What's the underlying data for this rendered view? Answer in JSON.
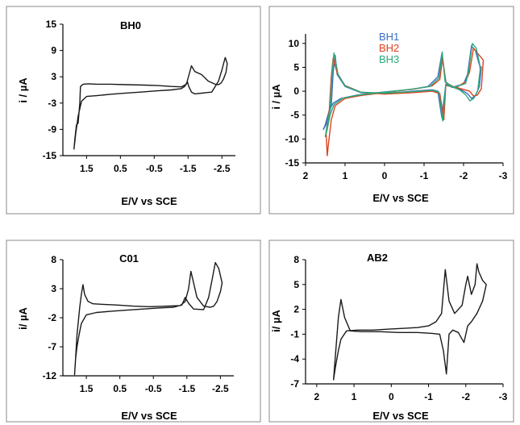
{
  "chart_data": [
    {
      "type": "line",
      "title": "BH0",
      "xlabel": "E/V vs SCE",
      "ylabel": "i / µA",
      "xlim": [
        2.2,
        -2.9
      ],
      "ylim": [
        -15,
        15
      ],
      "x_ticks": [
        "1.5",
        "0.5",
        "-0.5",
        "-1.5",
        "-2.5"
      ],
      "x_tick_values": [
        1.5,
        0.5,
        -0.5,
        -1.5,
        -2.5
      ],
      "y_ticks": [
        "15",
        "9",
        "3",
        "-3",
        "-9",
        "-15"
      ],
      "y_tick_values": [
        15,
        9,
        3,
        -3,
        -9,
        -15
      ],
      "legend": [],
      "series": [
        {
          "color": "#1a1a1a",
          "x": [
            1.87,
            1.82,
            1.75,
            1.65,
            1.5,
            1.2,
            0.8,
            0.3,
            -0.1,
            -0.6,
            -1.0,
            -1.3,
            -1.4,
            -1.48,
            -1.52,
            -1.6,
            -1.7,
            -2.2,
            -2.4,
            -2.5,
            -2.55,
            -2.6,
            -2.66,
            -2.62,
            -2.55,
            -2.48,
            -2.4,
            -2.3,
            -2.1,
            -1.9,
            -1.7,
            -1.6,
            -1.53,
            -1.45,
            -1.3,
            -1.0,
            -0.6,
            -0.2,
            0.3,
            0.8,
            1.2,
            1.45,
            1.6,
            1.68,
            1.7,
            1.75,
            1.8,
            1.85,
            1.87
          ],
          "y": [
            -13.5,
            -10.0,
            -6.0,
            -2.6,
            -1.5,
            -1.3,
            -1.0,
            -0.7,
            -0.5,
            -0.2,
            0.0,
            0.3,
            0.8,
            1.9,
            0.8,
            -0.5,
            -0.9,
            -0.5,
            2.0,
            4.5,
            6.0,
            7.4,
            6.0,
            4.0,
            2.5,
            1.6,
            1.2,
            1.3,
            2.0,
            3.5,
            4.2,
            5.5,
            3.5,
            1.3,
            0.7,
            0.8,
            1.0,
            1.1,
            1.2,
            1.3,
            1.3,
            1.4,
            1.3,
            0.8,
            -3.0,
            -7.6,
            -8.0,
            -11.5,
            -13.5
          ]
        }
      ]
    },
    {
      "type": "line",
      "title": "",
      "xlabel": "E/V vs SCE",
      "ylabel": "i / µA",
      "xlim": [
        2.0,
        -3.0
      ],
      "ylim": [
        -15,
        12
      ],
      "x_ticks": [
        "2",
        "1",
        "0",
        "-1",
        "-2",
        "-3"
      ],
      "x_tick_values": [
        2,
        1,
        0,
        -1,
        -2,
        -3
      ],
      "y_ticks": [
        "10",
        "5",
        "0",
        "-5",
        "-10",
        "-15"
      ],
      "y_tick_values": [
        10,
        5,
        0,
        -5,
        -10,
        -15
      ],
      "legend": [
        "BH1",
        "BH2",
        "BH3"
      ],
      "legend_colors": [
        "#3a6fc4",
        "#e0401c",
        "#2ca87a"
      ],
      "series": [
        {
          "name": "BH1",
          "color": "#3a6fc4",
          "x": [
            1.55,
            1.5,
            1.4,
            1.3,
            1.1,
            0.7,
            0.3,
            -0.2,
            -0.7,
            -1.1,
            -1.35,
            -1.45,
            -1.55,
            -1.7,
            -2.0,
            -2.1,
            -2.2,
            -2.3,
            -2.4,
            -2.45,
            -2.4,
            -2.3,
            -2.2,
            -2.1,
            -1.9,
            -1.55,
            -1.45,
            -1.35,
            -1.2,
            -0.7,
            0.0,
            0.6,
            1.0,
            1.2,
            1.25,
            1.3,
            1.35,
            1.45,
            1.55
          ],
          "y": [
            -8.0,
            -7.0,
            -4.0,
            -2.5,
            -1.5,
            -0.8,
            -0.4,
            0.0,
            0.4,
            1.0,
            3.0,
            7.8,
            2.0,
            0.8,
            1.5,
            3.5,
            9.5,
            8.5,
            5.5,
            5.0,
            1.0,
            -1.0,
            -1.5,
            -0.5,
            0.5,
            1.5,
            -5.5,
            0.0,
            0.3,
            0.0,
            -0.5,
            -0.3,
            1.0,
            3.5,
            7.5,
            4.0,
            -3.0,
            -6.5,
            -8.0
          ]
        },
        {
          "name": "BH2",
          "color": "#e0401c",
          "x": [
            1.45,
            1.42,
            1.35,
            1.25,
            1.0,
            0.6,
            0.2,
            -0.3,
            -0.8,
            -1.2,
            -1.4,
            -1.47,
            -1.55,
            -1.8,
            -2.05,
            -2.15,
            -2.25,
            -2.35,
            -2.45,
            -2.5,
            -2.45,
            -2.35,
            -2.25,
            -2.15,
            -1.9,
            -1.55,
            -1.5,
            -1.4,
            -1.2,
            -0.7,
            0.0,
            0.6,
            1.0,
            1.2,
            1.3,
            1.35,
            1.4,
            1.48,
            1.45
          ],
          "y": [
            -13.5,
            -11.0,
            -6.0,
            -3.0,
            -1.5,
            -0.9,
            -0.5,
            0.0,
            0.5,
            1.1,
            2.5,
            7.0,
            1.8,
            0.7,
            2.0,
            4.0,
            9.0,
            8.0,
            7.0,
            6.5,
            0.5,
            -0.8,
            -1.0,
            0.0,
            0.6,
            1.2,
            -6.0,
            -0.5,
            0.0,
            -0.3,
            -0.6,
            -0.2,
            1.2,
            3.8,
            7.0,
            3.0,
            -4.0,
            -8.5,
            -13.5
          ]
        },
        {
          "name": "BH3",
          "color": "#2ca87a",
          "x": [
            1.5,
            1.45,
            1.38,
            1.28,
            1.05,
            0.65,
            0.25,
            -0.25,
            -0.75,
            -1.15,
            -1.38,
            -1.46,
            -1.53,
            -1.75,
            -2.05,
            -2.12,
            -2.22,
            -2.32,
            -2.4,
            -2.42,
            -2.36,
            -2.26,
            -2.16,
            -2.06,
            -1.9,
            -1.55,
            -1.47,
            -1.38,
            -1.2,
            -0.7,
            0.0,
            0.6,
            1.0,
            1.18,
            1.28,
            1.33,
            1.38,
            1.46,
            1.5
          ],
          "y": [
            -9.5,
            -8.0,
            -5.0,
            -2.8,
            -1.4,
            -0.8,
            -0.4,
            0.0,
            0.5,
            1.0,
            2.8,
            8.2,
            2.0,
            0.8,
            1.6,
            3.8,
            10.0,
            9.0,
            6.0,
            4.5,
            0.2,
            -1.5,
            -2.0,
            -0.8,
            0.3,
            1.4,
            -6.2,
            -0.2,
            0.2,
            -0.1,
            -0.4,
            -0.2,
            1.1,
            3.6,
            8.0,
            3.5,
            -3.5,
            -7.5,
            -9.5
          ]
        }
      ]
    },
    {
      "type": "line",
      "title": "C01",
      "xlabel": "E/V vs SCE",
      "ylabel": "i/ µA",
      "xlim": [
        2.2,
        -2.9
      ],
      "ylim": [
        -12,
        8
      ],
      "x_ticks": [
        "1.5",
        "0.5",
        "-0.5",
        "-1.5",
        "-2.5"
      ],
      "x_tick_values": [
        1.5,
        0.5,
        -0.5,
        -1.5,
        -2.5
      ],
      "y_ticks": [
        "8",
        "3",
        "-2",
        "-7",
        "-12"
      ],
      "y_tick_values": [
        8,
        3,
        -2,
        -7,
        -12
      ],
      "legend": [],
      "series": [
        {
          "color": "#1a1a1a",
          "x": [
            1.85,
            1.82,
            1.78,
            1.72,
            1.65,
            1.5,
            1.2,
            0.8,
            0.3,
            -0.2,
            -0.7,
            -1.1,
            -1.35,
            -1.45,
            -1.55,
            -1.7,
            -2.0,
            -2.15,
            -2.25,
            -2.35,
            -2.45,
            -2.55,
            -2.5,
            -2.4,
            -2.3,
            -2.2,
            -2.0,
            -1.8,
            -1.62,
            -1.55,
            -1.45,
            -1.3,
            -0.9,
            -0.4,
            0.1,
            0.6,
            1.0,
            1.3,
            1.45,
            1.55,
            1.6,
            1.65,
            1.7,
            1.78,
            1.85
          ],
          "y": [
            -11.8,
            -9.0,
            -7.0,
            -5.0,
            -3.0,
            -1.5,
            -1.1,
            -0.9,
            -0.7,
            -0.5,
            -0.3,
            -0.2,
            0.2,
            1.5,
            0.5,
            -0.5,
            -0.6,
            1.5,
            4.5,
            7.5,
            6.5,
            4.0,
            2.5,
            0.8,
            0.0,
            -0.2,
            0.0,
            1.5,
            6.0,
            3.0,
            0.8,
            0.1,
            0.0,
            -0.1,
            0.0,
            0.2,
            0.3,
            0.4,
            0.8,
            2.0,
            3.7,
            2.0,
            -0.3,
            -5.0,
            -11.8
          ]
        }
      ]
    },
    {
      "type": "line",
      "title": "AB2",
      "xlabel": "E/V vs SCE",
      "ylabel": "i/ µA",
      "xlim": [
        2.3,
        -3.0
      ],
      "ylim": [
        -7,
        8
      ],
      "x_ticks": [
        "2",
        "1",
        "0",
        "-1",
        "-2",
        "-3"
      ],
      "x_tick_values": [
        2,
        1,
        0,
        -1,
        -2,
        -3
      ],
      "y_ticks": [
        "8",
        "5",
        "2",
        "-1",
        "-4",
        "-7"
      ],
      "y_tick_values": [
        8,
        5,
        2,
        -1,
        -4,
        -7
      ],
      "legend": [],
      "series": [
        {
          "color": "#1a1a1a",
          "x": [
            1.55,
            1.5,
            1.42,
            1.35,
            1.2,
            0.9,
            0.5,
            0.1,
            -0.3,
            -0.7,
            -1.0,
            -1.2,
            -1.35,
            -1.45,
            -1.55,
            -1.7,
            -1.9,
            -2.0,
            -2.05,
            -2.15,
            -2.25,
            -2.3,
            -2.35,
            -2.45,
            -2.55,
            -2.45,
            -2.3,
            -2.15,
            -2.05,
            -1.95,
            -1.8,
            -1.65,
            -1.55,
            -1.48,
            -1.4,
            -1.3,
            -1.1,
            -0.7,
            -0.2,
            0.3,
            0.8,
            1.1,
            1.25,
            1.35,
            1.42,
            1.48,
            1.55
          ],
          "y": [
            -6.5,
            -5.0,
            -3.0,
            -1.6,
            -0.6,
            -0.5,
            -0.5,
            -0.4,
            -0.3,
            -0.2,
            0.0,
            0.5,
            1.5,
            6.8,
            3.0,
            1.5,
            2.5,
            5.0,
            6.0,
            3.8,
            5.0,
            7.5,
            6.5,
            5.5,
            5.0,
            3.0,
            1.5,
            0.5,
            0.0,
            -2.0,
            -0.8,
            -0.5,
            -1.0,
            -5.8,
            -3.0,
            -1.0,
            -0.9,
            -0.8,
            -0.8,
            -0.7,
            -0.7,
            -0.6,
            1.0,
            3.2,
            1.0,
            -2.5,
            -6.5
          ]
        }
      ]
    }
  ]
}
